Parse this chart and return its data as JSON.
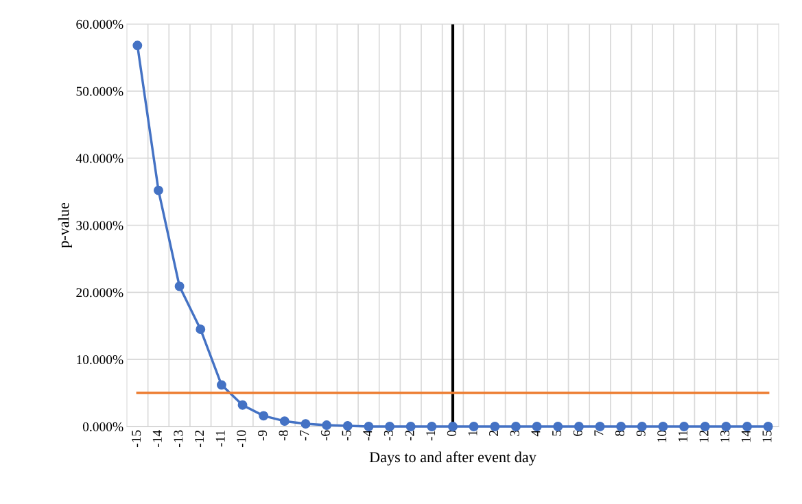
{
  "chart_data": {
    "type": "line",
    "xlabel": "Days to and after event day",
    "ylabel": "p-value",
    "categories": [
      "-15",
      "-14",
      "-13",
      "-12",
      "-11",
      "-10",
      "-9",
      "-8",
      "-7",
      "-6",
      "-5",
      "-4",
      "-3",
      "-2",
      "-1",
      "0",
      "1",
      "2",
      "3",
      "4",
      "5",
      "6",
      "7",
      "8",
      "9",
      "10",
      "11",
      "12",
      "13",
      "14",
      "15"
    ],
    "series": [
      {
        "color": "#4472c4",
        "marker": "circle",
        "values": [
          56.8,
          35.2,
          20.9,
          14.5,
          6.2,
          3.2,
          1.6,
          0.8,
          0.4,
          0.2,
          0.1,
          0,
          0,
          0,
          0,
          0,
          0,
          0,
          0,
          0,
          0,
          0,
          0,
          0,
          0,
          0,
          0,
          0,
          0,
          0,
          0
        ]
      },
      {
        "color": "#ed7d31",
        "marker": "none",
        "values": [
          5,
          5,
          5,
          5,
          5,
          5,
          5,
          5,
          5,
          5,
          5,
          5,
          5,
          5,
          5,
          5,
          5,
          5,
          5,
          5,
          5,
          5,
          5,
          5,
          5,
          5,
          5,
          5,
          5,
          5,
          5
        ]
      }
    ],
    "ref_lines": [
      {
        "axis": "x",
        "value": "0",
        "color": "#000000"
      }
    ],
    "ylim": [
      0,
      60
    ],
    "yticks": [
      {
        "value": 0,
        "label": "0.000%"
      },
      {
        "value": 10,
        "label": "10.000%"
      },
      {
        "value": 20,
        "label": "20.000%"
      },
      {
        "value": 30,
        "label": "30.000%"
      },
      {
        "value": 40,
        "label": "40.000%"
      },
      {
        "value": 50,
        "label": "50.000%"
      },
      {
        "value": 60,
        "label": "60.000%"
      }
    ],
    "grid": true,
    "legend": false
  }
}
